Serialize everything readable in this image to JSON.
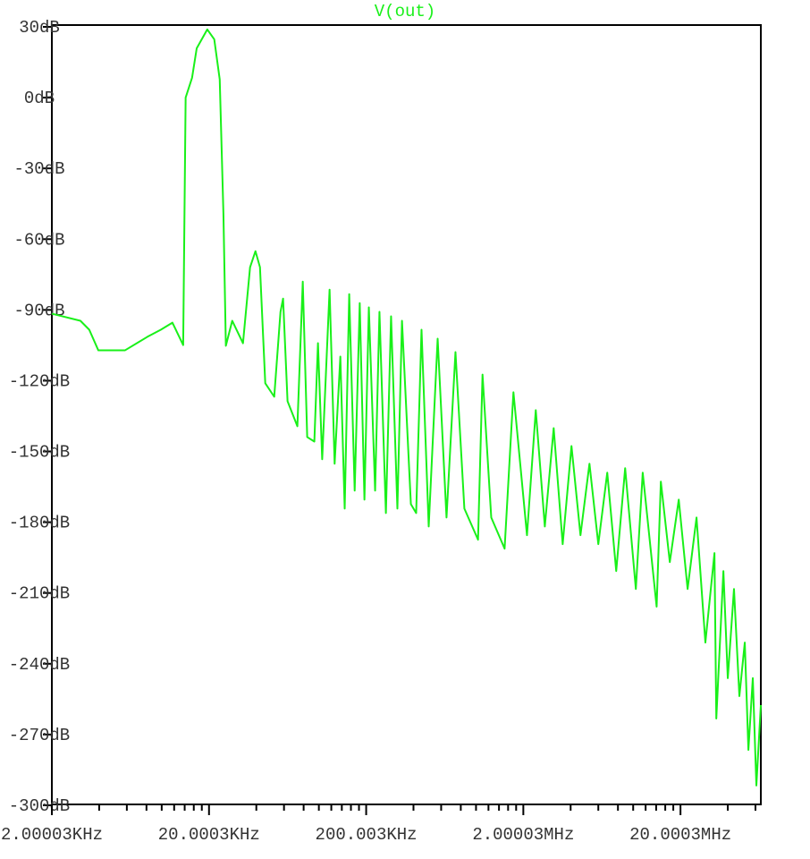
{
  "chart_data": {
    "type": "line",
    "log_x": true,
    "x": [
      2000,
      3040,
      3460,
      3950,
      5850,
      8110,
      9870,
      11700,
      13700,
      14200,
      15600,
      16700,
      19500,
      21600,
      23400,
      24700,
      25600,
      28100,
      32900,
      36500,
      39500,
      42200,
      45600,
      52000,
      57000,
      59200,
      63200,
      73000,
      79000,
      84300,
      93600,
      98700,
      105000,
      117000,
      126000,
      137000,
      146000,
      156000,
      169000,
      182000,
      195000,
      208000,
      228000,
      243000,
      267000,
      288000,
      316000,
      338000,
      385000,
      416000,
      450000,
      500000,
      570000,
      649000,
      740000,
      843000,
      1030000,
      1100000,
      1250000,
      1520000,
      1730000,
      2110000,
      2400000,
      2740000,
      3120000,
      3560000,
      4050000,
      4620000,
      5270000,
      6000000,
      6840000,
      7800000,
      8890000,
      10400000,
      11500000,
      14100000,
      15000000,
      17100000,
      19500000,
      22200000,
      25300000,
      28800000,
      32900000,
      33800000,
      37500000,
      40000000,
      43800000,
      47400000,
      51300000,
      54100000,
      57700000,
      60800000,
      64900000
    ],
    "series": [
      {
        "name": "V(out)",
        "color": "#19f019",
        "values": [
          -91.6,
          -94.6,
          -98.4,
          -107.1,
          -107.1,
          -101.4,
          -98.4,
          -95.4,
          -104.9,
          0,
          8.4,
          20.9,
          28.9,
          24.7,
          7.7,
          -49.2,
          -105.2,
          -94.6,
          -104.1,
          -71.9,
          -65.1,
          -71.9,
          -121.1,
          -126.8,
          -90.8,
          -85.2,
          -128.7,
          -139.3,
          -78.0,
          -143.9,
          -145.8,
          -104.1,
          -153.3,
          -81.4,
          -155.2,
          -109.8,
          -174.2,
          -83.3,
          -166.6,
          -87.1,
          -170.4,
          -88.9,
          -166.6,
          -90.8,
          -176.1,
          -92.7,
          -174.2,
          -94.6,
          -172.3,
          -176.1,
          -98.4,
          -181.8,
          -102.2,
          -178.0,
          -107.9,
          -174.2,
          -187.4,
          -117.4,
          -178.0,
          -191.2,
          -124.9,
          -185.5,
          -132.5,
          -181.8,
          -140.1,
          -189.3,
          -147.7,
          -185.5,
          -155.2,
          -189.3,
          -159.0,
          -200.7,
          -157.1,
          -208.3,
          -159.0,
          -215.8,
          -162.8,
          -196.9,
          -170.4,
          -208.3,
          -178.0,
          -231.0,
          -193.1,
          -263.2,
          -200.7,
          -246.1,
          -208.3,
          -253.7,
          -231.0,
          -276.5,
          -246.1,
          -291.6,
          -257.5
        ]
      }
    ],
    "xlim": [
      2000.03,
      64900000
    ],
    "xticks": [
      {
        "value": 2000.03,
        "label": "2.00003KHz"
      },
      {
        "value": 20000.3,
        "label": "20.0003KHz"
      },
      {
        "value": 200003,
        "label": "200.003KHz"
      },
      {
        "value": 2000030,
        "label": "2.00003MHz"
      },
      {
        "value": 20000300,
        "label": "20.0003MHz"
      }
    ],
    "xminorticks": [
      4000,
      6000,
      8000,
      10000,
      12000,
      14000,
      16000,
      18000,
      40000,
      60000,
      80000,
      100000,
      120000,
      140000,
      160000,
      180000,
      400000,
      600000,
      800000,
      1000000,
      1200000,
      1400000,
      1600000,
      1800000,
      4000000,
      6000000,
      8000000,
      10000000,
      12000000,
      14000000,
      16000000,
      18000000,
      40000000,
      60000000
    ],
    "ylim": [
      -300,
      30
    ],
    "yticks": [
      {
        "value": 30,
        "label": "30dB"
      },
      {
        "value": 0,
        "label": "0dB"
      },
      {
        "value": -30,
        "label": "-30dB"
      },
      {
        "value": -60,
        "label": "-60dB"
      },
      {
        "value": -90,
        "label": "-90dB"
      },
      {
        "value": -120,
        "label": "-120dB"
      },
      {
        "value": -150,
        "label": "-150dB"
      },
      {
        "value": -180,
        "label": "-180dB"
      },
      {
        "value": -210,
        "label": "-210dB"
      },
      {
        "value": -240,
        "label": "-240dB"
      },
      {
        "value": -270,
        "label": "-270dB"
      },
      {
        "value": -300,
        "label": "-300dB"
      }
    ]
  }
}
